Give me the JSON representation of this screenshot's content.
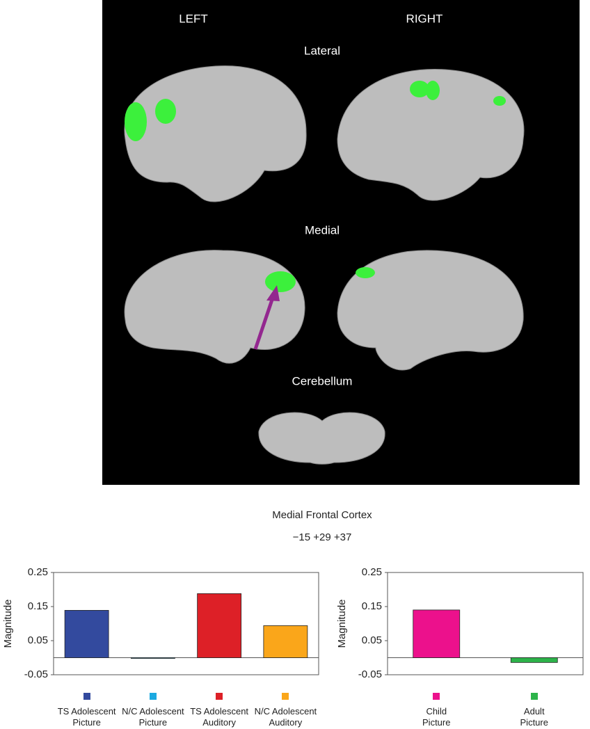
{
  "figure": {
    "left": "LEFT",
    "right": "RIGHT",
    "lateral": "Lateral",
    "medial": "Medial",
    "cerebellum": "Cerebellum",
    "region": "Medial Frontal Cortex",
    "coordinates": "−15 +29 +37"
  },
  "chart_data": [
    {
      "type": "bar",
      "y_label": "Magnitude",
      "categories": [
        "TS Adolescent Picture",
        "N/C Adolescent Picture",
        "TS Adolescent Auditory",
        "N/C Adolescent Auditory"
      ],
      "values": [
        0.139,
        -0.002,
        0.188,
        0.094
      ],
      "colors": [
        "#334a9e",
        "#1ba9e1",
        "#dd2027",
        "#faa61a"
      ],
      "ylim": [
        -0.05,
        0.25
      ],
      "yticks": [
        -0.05,
        0.05,
        0.15,
        0.25
      ]
    },
    {
      "type": "bar",
      "y_label": "Magnitude",
      "categories": [
        "Child Picture",
        "Adult Picture"
      ],
      "values": [
        0.14,
        -0.014
      ],
      "colors": [
        "#ec118c",
        "#2db34a"
      ],
      "ylim": [
        -0.05,
        0.25
      ],
      "yticks": [
        -0.05,
        0.05,
        0.15,
        0.25
      ]
    }
  ]
}
